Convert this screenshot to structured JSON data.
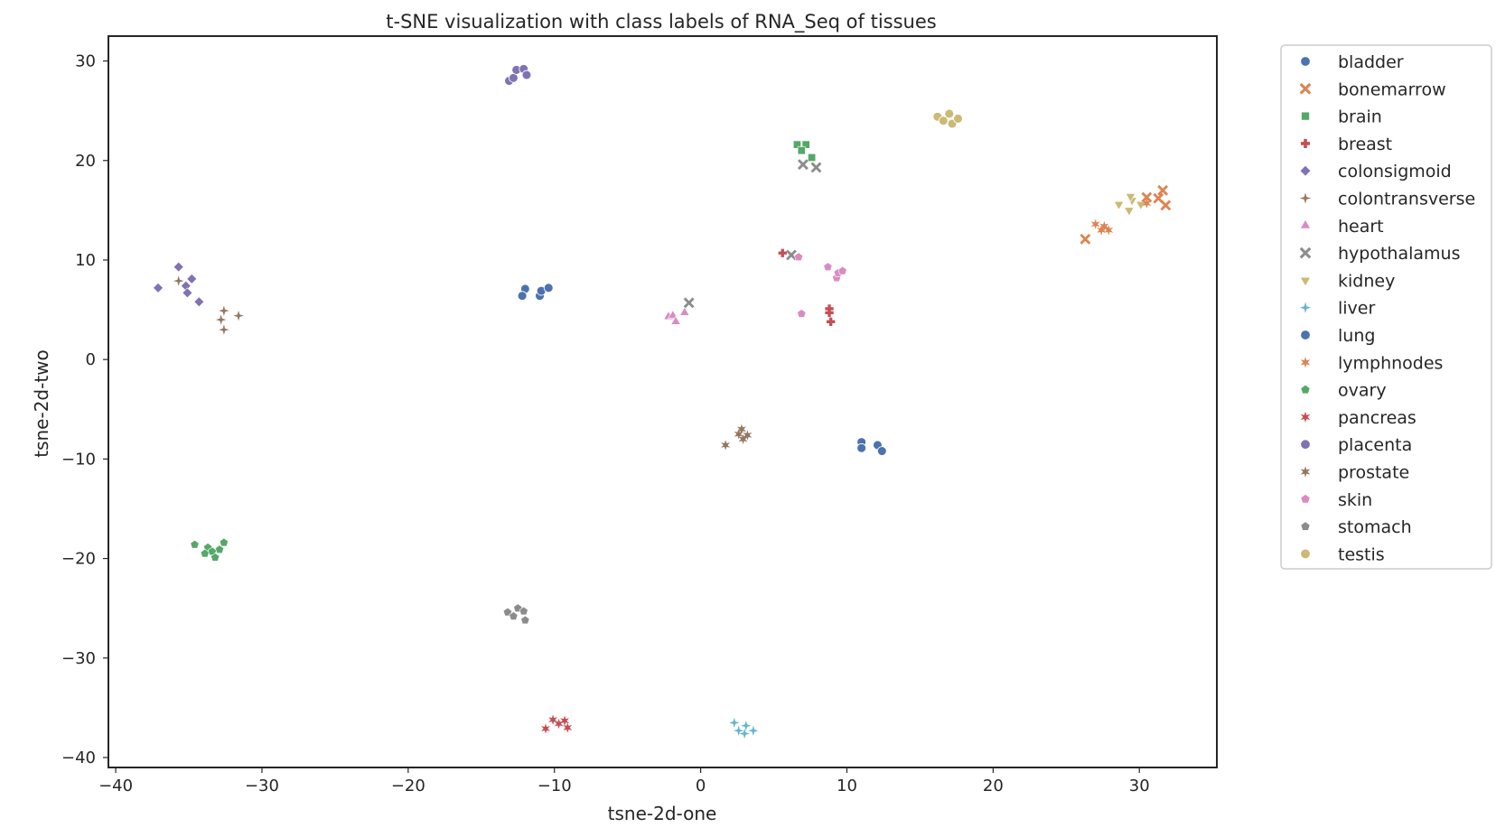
{
  "chart_data": {
    "type": "scatter",
    "title": "t-SNE visualization with class labels of RNA_Seq of tissues",
    "xlabel": "tsne-2d-one",
    "ylabel": "tsne-2d-two",
    "xlim": [
      -40.5,
      35.3
    ],
    "ylim": [
      -41.0,
      32.5
    ],
    "xticks": [
      -40,
      -30,
      -20,
      -10,
      0,
      10,
      20,
      30
    ],
    "yticks": [
      -40,
      -30,
      -20,
      -10,
      0,
      10,
      20,
      30
    ],
    "xtick_labels": [
      "−40",
      "−30",
      "−20",
      "−10",
      "0",
      "10",
      "20",
      "30"
    ],
    "ytick_labels": [
      "−40",
      "−30",
      "−20",
      "−10",
      "0",
      "10",
      "20",
      "30"
    ],
    "grid": false,
    "legend_position": "outside-right",
    "series": [
      {
        "name": "bladder",
        "color": "#4c72b0",
        "marker": "circle",
        "points": [
          [
            -12.0,
            7.1
          ],
          [
            -12.2,
            6.4
          ],
          [
            -11.0,
            6.4
          ],
          [
            -10.9,
            6.9
          ],
          [
            -10.4,
            7.2
          ]
        ]
      },
      {
        "name": "bonemarrow",
        "color": "#dd8452",
        "marker": "x",
        "points": [
          [
            26.3,
            12.1
          ],
          [
            30.5,
            16.3
          ],
          [
            31.6,
            17.0
          ],
          [
            31.3,
            16.2
          ],
          [
            31.8,
            15.5
          ]
        ]
      },
      {
        "name": "brain",
        "color": "#55a868",
        "marker": "square",
        "points": [
          [
            6.6,
            21.6
          ],
          [
            7.2,
            21.6
          ],
          [
            6.9,
            21.0
          ],
          [
            7.6,
            20.3
          ]
        ]
      },
      {
        "name": "breast",
        "color": "#c44e52",
        "marker": "plus",
        "points": [
          [
            5.6,
            10.7
          ],
          [
            8.8,
            4.7
          ],
          [
            8.8,
            5.1
          ],
          [
            8.9,
            3.8
          ]
        ]
      },
      {
        "name": "colonsigmoid",
        "color": "#8172b3",
        "marker": "diamond",
        "points": [
          [
            -37.1,
            7.2
          ],
          [
            -35.7,
            9.3
          ],
          [
            -35.2,
            7.4
          ],
          [
            -35.1,
            6.7
          ],
          [
            -34.8,
            8.1
          ],
          [
            -34.3,
            5.8
          ]
        ]
      },
      {
        "name": "colontransverse",
        "color": "#937860",
        "marker": "plus4",
        "points": [
          [
            -35.7,
            7.9
          ],
          [
            -32.6,
            4.9
          ],
          [
            -32.8,
            4.0
          ],
          [
            -32.6,
            3.0
          ],
          [
            -31.6,
            4.4
          ]
        ]
      },
      {
        "name": "heart",
        "color": "#da8bc3",
        "marker": "triangle",
        "points": [
          [
            -2.2,
            4.3
          ],
          [
            -1.9,
            4.4
          ],
          [
            -1.7,
            3.8
          ],
          [
            -1.1,
            4.7
          ]
        ]
      },
      {
        "name": "hypothalamus",
        "color": "#8c8c8c",
        "marker": "x",
        "points": [
          [
            -0.8,
            5.7
          ],
          [
            6.2,
            10.5
          ],
          [
            7.0,
            19.6
          ],
          [
            7.9,
            19.3
          ]
        ]
      },
      {
        "name": "kidney",
        "color": "#ccb974",
        "marker": "triangle-down",
        "points": [
          [
            28.6,
            15.6
          ],
          [
            29.3,
            15.0
          ],
          [
            29.5,
            16.0
          ],
          [
            29.4,
            16.4
          ],
          [
            30.1,
            15.6
          ]
        ]
      },
      {
        "name": "liver",
        "color": "#64b5cd",
        "marker": "plus4",
        "points": [
          [
            2.3,
            -36.5
          ],
          [
            2.6,
            -37.3
          ],
          [
            3.1,
            -36.8
          ],
          [
            3.0,
            -37.6
          ],
          [
            3.6,
            -37.3
          ]
        ]
      },
      {
        "name": "lung",
        "color": "#4c72b0",
        "marker": "circle",
        "points": [
          [
            11.0,
            -8.3
          ],
          [
            11.0,
            -8.9
          ],
          [
            12.1,
            -8.6
          ],
          [
            12.4,
            -9.2
          ]
        ]
      },
      {
        "name": "lymphnodes",
        "color": "#dd8452",
        "marker": "star",
        "points": [
          [
            27.0,
            13.6
          ],
          [
            27.4,
            13.0
          ],
          [
            27.6,
            13.4
          ],
          [
            27.9,
            13.0
          ],
          [
            30.5,
            15.7
          ]
        ]
      },
      {
        "name": "ovary",
        "color": "#55a868",
        "marker": "pentagon",
        "points": [
          [
            -34.6,
            -18.6
          ],
          [
            -33.7,
            -18.9
          ],
          [
            -33.9,
            -19.5
          ],
          [
            -33.4,
            -19.3
          ],
          [
            -33.2,
            -19.9
          ],
          [
            -32.9,
            -19.1
          ],
          [
            -32.6,
            -18.4
          ]
        ]
      },
      {
        "name": "pancreas",
        "color": "#c44e52",
        "marker": "star",
        "points": [
          [
            -10.6,
            -37.1
          ],
          [
            -10.1,
            -36.2
          ],
          [
            -9.7,
            -36.6
          ],
          [
            -9.3,
            -36.3
          ],
          [
            -9.1,
            -37.0
          ]
        ]
      },
      {
        "name": "placenta",
        "color": "#8172b3",
        "marker": "circle",
        "points": [
          [
            -13.1,
            28.0
          ],
          [
            -12.8,
            28.3
          ],
          [
            -12.6,
            29.1
          ],
          [
            -12.1,
            29.2
          ],
          [
            -11.9,
            28.6
          ]
        ]
      },
      {
        "name": "prostate",
        "color": "#937860",
        "marker": "star",
        "points": [
          [
            1.7,
            -8.6
          ],
          [
            2.6,
            -7.5
          ],
          [
            2.8,
            -7.0
          ],
          [
            2.9,
            -8.0
          ],
          [
            3.2,
            -7.6
          ]
        ]
      },
      {
        "name": "skin",
        "color": "#da8bc3",
        "marker": "pentagon",
        "points": [
          [
            6.7,
            10.3
          ],
          [
            6.9,
            4.6
          ],
          [
            8.7,
            9.3
          ],
          [
            9.3,
            8.2
          ],
          [
            9.4,
            8.7
          ],
          [
            9.7,
            8.9
          ]
        ]
      },
      {
        "name": "stomach",
        "color": "#8c8c8c",
        "marker": "pentagon",
        "points": [
          [
            -13.2,
            -25.4
          ],
          [
            -12.8,
            -25.8
          ],
          [
            -12.5,
            -25.0
          ],
          [
            -12.1,
            -25.3
          ],
          [
            -12.0,
            -26.2
          ]
        ]
      },
      {
        "name": "testis",
        "color": "#ccb974",
        "marker": "circle",
        "points": [
          [
            16.2,
            24.4
          ],
          [
            16.6,
            24.0
          ],
          [
            17.0,
            24.7
          ],
          [
            17.2,
            23.7
          ],
          [
            17.6,
            24.2
          ]
        ]
      }
    ]
  }
}
